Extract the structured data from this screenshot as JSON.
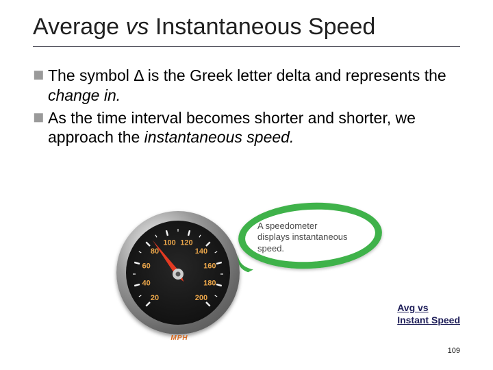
{
  "title_pre": "Average ",
  "title_vs": "vs",
  "title_post": " Instantaneous Speed",
  "bullets": [
    {
      "pre": "The symbol Δ is the Greek letter delta and represents the ",
      "em": "change in.",
      "post": ""
    },
    {
      "pre": "As the time interval becomes shorter and shorter, we approach the ",
      "em": "instantaneous speed.",
      "post": ""
    }
  ],
  "callout_line1": "A speedometer",
  "callout_line2": "displays instantaneous",
  "callout_line3": "speed.",
  "ring_color": "#3fb24a",
  "mph_label": "MPH",
  "gauge": {
    "numbers": [
      "20",
      "40",
      "60",
      "80",
      "100",
      "120",
      "140",
      "160",
      "180",
      "200"
    ],
    "number_color": "#e9a54a",
    "tick_color": "#f8f8f8",
    "needle_color": "#e23a22",
    "needle_angle_deg": 233,
    "hub_color": "#cfcfcf"
  },
  "link_line1": "Avg vs",
  "link_line2": "Instant Speed",
  "page_number": "109"
}
